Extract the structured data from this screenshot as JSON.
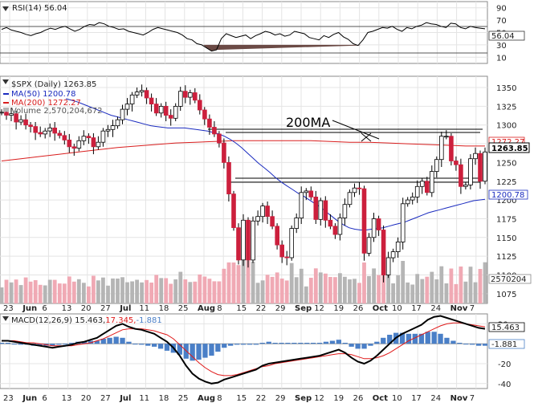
{
  "rsi_panel": {
    "legend": "RSI(14) 56.04",
    "current_value": "56.04",
    "y_ticks": [
      "90",
      "70",
      "50",
      "30",
      "10"
    ]
  },
  "price_panel": {
    "legend_title": "$SPX (Daily) 1263.85",
    "legend_ma50": "MA(50) 1200.78",
    "legend_ma200": "MA(200) 1272.27",
    "legend_volume": "Volume 2,570,204,672",
    "annotation": "200MA",
    "value_price": "1263.85",
    "value_ma200": "1272.27",
    "value_ma50": "1200.78",
    "value_volume": "2570204",
    "y_ticks": [
      "1350",
      "1325",
      "1300",
      "1275",
      "1250",
      "1225",
      "1200",
      "1175",
      "1150",
      "1125",
      "1100",
      "1075"
    ]
  },
  "macd_panel": {
    "legend_prefix": "MACD(12,26,9) 15.463,",
    "legend_signal": "17.345,",
    "legend_hist": "-1.881",
    "value_macd": "15.463",
    "value_hist": "-1.881",
    "y_ticks": [
      "20",
      "0",
      "-20",
      "-40"
    ]
  },
  "x_axis": {
    "labels": [
      "23",
      "Jun",
      "6",
      "13",
      "20",
      "27",
      "Jul",
      "11",
      "18",
      "25",
      "Aug",
      "8",
      "15",
      "22",
      "29",
      "Sep",
      "12",
      "19",
      "26",
      "Oct",
      "10",
      "17",
      "24",
      "Nov",
      "7"
    ]
  },
  "colors": {
    "up": "#ffffff",
    "down": "#cc1f3c",
    "ma50": "#1a2bbf",
    "ma200": "#d91e1e",
    "vol_up": "#b5b5b5",
    "vol_down": "#f0a9b4",
    "macd": "#000000",
    "signal": "#e01a1a",
    "hist": "#4a7fc7"
  },
  "chart_data": [
    {
      "type": "line",
      "title": "RSI(14)",
      "series": [
        {
          "name": "RSI(14)",
          "values": [
            55,
            58,
            54,
            52,
            50,
            47,
            45,
            48,
            50,
            54,
            57,
            55,
            58,
            60,
            56,
            52,
            55,
            60,
            63,
            62,
            66,
            64,
            60,
            58,
            55,
            56,
            52,
            50,
            48,
            46,
            50,
            55,
            58,
            56,
            54,
            52,
            50,
            46,
            40,
            38,
            32,
            30,
            25,
            20,
            22,
            40,
            48,
            45,
            42,
            44,
            46,
            40,
            45,
            48,
            52,
            50,
            46,
            48,
            44,
            46,
            52,
            50,
            48,
            42,
            40,
            38,
            45,
            42,
            47,
            50,
            43,
            39,
            32,
            29,
            38,
            50,
            52,
            55,
            58,
            57,
            60,
            55,
            52,
            58,
            56,
            60,
            62,
            66,
            64,
            63,
            60,
            58,
            65,
            64,
            58,
            56,
            60,
            58,
            57,
            56
          ]
        }
      ],
      "ylim": [
        0,
        100
      ]
    },
    {
      "type": "candlestick",
      "title": "$SPX (Daily)",
      "x_ticks": [
        "23",
        "Jun",
        "6",
        "13",
        "20",
        "27",
        "Jul",
        "11",
        "18",
        "25",
        "Aug",
        "8",
        "15",
        "22",
        "29",
        "Sep",
        "12",
        "19",
        "26",
        "Oct",
        "10",
        "17",
        "24",
        "Nov",
        "7"
      ],
      "closes": [
        1317,
        1313,
        1315,
        1304,
        1307,
        1300,
        1298,
        1290,
        1288,
        1292,
        1296,
        1289,
        1286,
        1280,
        1271,
        1269,
        1279,
        1285,
        1283,
        1271,
        1277,
        1292,
        1294,
        1299,
        1307,
        1321,
        1328,
        1340,
        1344,
        1346,
        1336,
        1328,
        1316,
        1325,
        1313,
        1309,
        1325,
        1345,
        1337,
        1343,
        1333,
        1320,
        1308,
        1297,
        1288,
        1276,
        1250,
        1208,
        1163,
        1120,
        1173,
        1120,
        1172,
        1178,
        1192,
        1178,
        1165,
        1140,
        1124,
        1123,
        1162,
        1176,
        1210,
        1212,
        1204,
        1174,
        1199,
        1173,
        1165,
        1154,
        1176,
        1194,
        1210,
        1216,
        1215,
        1129,
        1150,
        1175,
        1160,
        1100,
        1123,
        1131,
        1144,
        1195,
        1200,
        1204,
        1218,
        1225,
        1210,
        1238,
        1254,
        1285,
        1285,
        1252,
        1247,
        1218,
        1220,
        1255,
        1262,
        1225,
        1264
      ],
      "ma50": [
        1335,
        1333,
        1331,
        1328,
        1325,
        1322,
        1319,
        1316,
        1313,
        1311,
        1309,
        1307,
        1305,
        1303,
        1301,
        1299,
        1298,
        1297,
        1296,
        1296,
        1296,
        1296,
        1295,
        1294,
        1293,
        1292,
        1290,
        1288,
        1285,
        1281,
        1276,
        1270,
        1263,
        1256,
        1249,
        1243,
        1237,
        1230,
        1224,
        1219,
        1214,
        1209,
        1205,
        1200,
        1195,
        1190,
        1184,
        1178,
        1172,
        1167,
        1163,
        1161,
        1160,
        1160,
        1161,
        1162,
        1163,
        1165,
        1167,
        1169,
        1171,
        1174,
        1177,
        1180,
        1183,
        1185,
        1187,
        1189,
        1191,
        1193,
        1195,
        1197,
        1199,
        1200,
        1201
      ],
      "ma200": [
        1252,
        1255,
        1258,
        1261,
        1264,
        1267,
        1270,
        1272,
        1274,
        1276,
        1277,
        1278,
        1279,
        1279,
        1279,
        1279,
        1279,
        1278,
        1277,
        1277,
        1276,
        1275,
        1274,
        1273,
        1272,
        1272
      ],
      "volume_last": 2570204672
    },
    {
      "type": "line",
      "title": "MACD(12,26,9)",
      "series": [
        {
          "name": "MACD",
          "values": [
            3,
            3,
            2,
            1,
            0,
            -1,
            -2,
            -3,
            -4,
            -3,
            -2,
            -1,
            1,
            2,
            4,
            6,
            10,
            14,
            18,
            20,
            17,
            15,
            14,
            12,
            10,
            6,
            2,
            -4,
            -12,
            -22,
            -30,
            -35,
            -38,
            -40,
            -39,
            -36,
            -34,
            -32,
            -30,
            -28,
            -26,
            -22,
            -20,
            -19,
            -18,
            -17,
            -16,
            -15,
            -14,
            -13,
            -12,
            -10,
            -8,
            -6,
            -9,
            -14,
            -18,
            -20,
            -17,
            -12,
            -6,
            0,
            6,
            10,
            13,
            16,
            19,
            24,
            27,
            28,
            26,
            24,
            22,
            20,
            18,
            16,
            15
          ]
        },
        {
          "name": "Signal",
          "values": [
            3,
            3,
            3,
            2,
            1,
            1,
            0,
            -1,
            -2,
            -2,
            -2,
            -2,
            -1,
            0,
            1,
            3,
            5,
            8,
            11,
            14,
            15,
            15,
            15,
            14,
            13,
            11,
            9,
            5,
            -1,
            -7,
            -13,
            -19,
            -24,
            -28,
            -31,
            -32,
            -32,
            -31,
            -29,
            -27,
            -25,
            -23,
            -22,
            -20,
            -19,
            -18,
            -17,
            -16,
            -15,
            -14,
            -13,
            -12,
            -11,
            -10,
            -10,
            -11,
            -13,
            -15,
            -15,
            -14,
            -12,
            -9,
            -5,
            -1,
            3,
            6,
            9,
            12,
            15,
            18,
            20,
            21,
            21,
            20,
            19,
            18,
            17
          ]
        },
        {
          "name": "Histogram",
          "values": [
            1,
            1,
            0,
            -1,
            -1,
            -2,
            -2,
            -2,
            -2,
            -1,
            0,
            1,
            2,
            2,
            3,
            3,
            5,
            6,
            7,
            6,
            2,
            0,
            -1,
            -2,
            -3,
            -5,
            -7,
            -9,
            -11,
            -15,
            -17,
            -16,
            -14,
            -12,
            -8,
            -4,
            -2,
            -1,
            -1,
            -1,
            -1,
            1,
            2,
            1,
            1,
            1,
            1,
            1,
            1,
            1,
            1,
            2,
            3,
            4,
            1,
            -3,
            -5,
            -5,
            -2,
            2,
            6,
            9,
            11,
            11,
            10,
            10,
            10,
            12,
            12,
            10,
            6,
            3,
            1,
            0,
            -1,
            -2,
            -2
          ]
        }
      ],
      "ylim": [
        -45,
        30
      ]
    }
  ]
}
